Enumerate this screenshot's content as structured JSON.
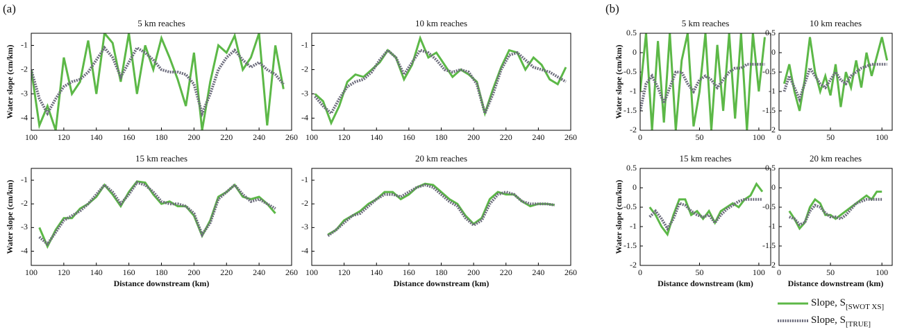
{
  "panel_labels": [
    "(a)",
    "(b)"
  ],
  "legend": [
    {
      "text": "Slope, S",
      "subscript": "[SWOT XS]",
      "color": "#5cb847",
      "style": "solid"
    },
    {
      "text": "Slope, S",
      "subscript": "[TRUE]",
      "color": "#6b6b7b",
      "style": "dotted"
    }
  ],
  "chart_data": [
    {
      "type": "line",
      "title": "5 km reaches",
      "ylabel": "Water slope (cm/km)",
      "xlim": [
        100,
        260
      ],
      "xticks": [
        100,
        120,
        140,
        160,
        180,
        200,
        220,
        240,
        260
      ],
      "ylim": [
        -4.5,
        -0.5
      ],
      "yticks": [
        -4,
        -3,
        -2,
        -1
      ],
      "x": [
        100,
        105,
        110,
        115,
        120,
        125,
        130,
        135,
        140,
        145,
        150,
        155,
        160,
        165,
        170,
        175,
        180,
        185,
        190,
        195,
        200,
        205,
        210,
        215,
        220,
        225,
        230,
        235,
        240,
        245,
        250,
        255
      ],
      "series": [
        {
          "color": "#5cb847",
          "style": "solid",
          "values": [
            -2.0,
            -4.3,
            -3.5,
            -4.5,
            -1.5,
            -3.0,
            -2.5,
            -0.8,
            -3.0,
            -0.5,
            -0.9,
            -2.5,
            -0.5,
            -3.0,
            -1.0,
            -2.0,
            -0.7,
            -1.5,
            -2.4,
            -3.5,
            -1.3,
            -4.5,
            -2.5,
            -1.0,
            -1.3,
            -0.6,
            -2.0,
            -1.5,
            -0.5,
            -4.3,
            -1.0,
            -2.8
          ]
        },
        {
          "color": "#6b6b7b",
          "style": "dotted",
          "values": [
            -2.0,
            -3.2,
            -3.8,
            -3.2,
            -2.7,
            -2.5,
            -2.4,
            -2.1,
            -1.6,
            -1.1,
            -1.5,
            -2.3,
            -1.7,
            -1.1,
            -1.3,
            -1.6,
            -2.0,
            -2.1,
            -2.1,
            -2.2,
            -2.6,
            -3.8,
            -3.0,
            -2.0,
            -1.5,
            -1.2,
            -1.6,
            -1.9,
            -1.7,
            -2.0,
            -2.2,
            -2.6
          ]
        }
      ]
    },
    {
      "type": "line",
      "title": "10 km reaches",
      "xlim": [
        100,
        260
      ],
      "xticks": [
        100,
        120,
        140,
        160,
        180,
        200,
        220,
        240,
        260
      ],
      "ylim": [
        -4.5,
        -0.5
      ],
      "yticks": [
        -4,
        -3,
        -2,
        -1
      ],
      "x": [
        102,
        107,
        112,
        117,
        122,
        127,
        132,
        137,
        142,
        147,
        152,
        157,
        162,
        167,
        172,
        177,
        182,
        187,
        192,
        197,
        202,
        207,
        212,
        217,
        222,
        227,
        232,
        237,
        242,
        247,
        252,
        257
      ],
      "series": [
        {
          "color": "#5cb847",
          "style": "solid",
          "values": [
            -3.0,
            -3.3,
            -4.2,
            -3.5,
            -2.5,
            -2.2,
            -2.3,
            -2.0,
            -1.7,
            -1.2,
            -1.5,
            -2.4,
            -1.8,
            -0.7,
            -1.5,
            -1.3,
            -1.8,
            -2.3,
            -2.0,
            -2.2,
            -2.5,
            -3.8,
            -2.8,
            -1.9,
            -1.2,
            -1.3,
            -2.0,
            -1.5,
            -1.8,
            -2.4,
            -2.6,
            -1.9
          ]
        },
        {
          "color": "#6b6b7b",
          "style": "dotted",
          "values": [
            -3.1,
            -3.5,
            -3.8,
            -3.2,
            -2.7,
            -2.5,
            -2.4,
            -2.1,
            -1.6,
            -1.2,
            -1.5,
            -2.2,
            -1.7,
            -1.2,
            -1.3,
            -1.6,
            -2.0,
            -2.1,
            -2.0,
            -2.1,
            -2.6,
            -3.8,
            -3.0,
            -2.0,
            -1.4,
            -1.3,
            -1.6,
            -1.9,
            -2.0,
            -2.1,
            -2.3,
            -2.5
          ]
        }
      ]
    },
    {
      "type": "line",
      "title": "15 km reaches",
      "ylabel": "Water slope (cm/km)",
      "xlabel": "Distance downstream (km)",
      "xlim": [
        100,
        260
      ],
      "xticks": [
        100,
        120,
        140,
        160,
        180,
        200,
        220,
        240,
        260
      ],
      "ylim": [
        -4.6,
        -0.5
      ],
      "yticks": [
        -4,
        -3,
        -2,
        -1
      ],
      "x": [
        105,
        110,
        115,
        120,
        125,
        130,
        135,
        140,
        145,
        150,
        155,
        160,
        165,
        170,
        175,
        180,
        185,
        190,
        195,
        200,
        205,
        210,
        215,
        220,
        225,
        230,
        235,
        240,
        245,
        250
      ],
      "series": [
        {
          "color": "#5cb847",
          "style": "solid",
          "values": [
            -3.0,
            -3.8,
            -3.1,
            -2.6,
            -2.6,
            -2.2,
            -2.0,
            -1.7,
            -1.2,
            -1.6,
            -2.1,
            -1.5,
            -1.05,
            -1.1,
            -1.6,
            -2.0,
            -1.9,
            -2.1,
            -2.1,
            -2.5,
            -3.35,
            -2.7,
            -1.7,
            -1.5,
            -1.2,
            -1.7,
            -1.8,
            -1.7,
            -2.0,
            -2.4
          ]
        },
        {
          "color": "#6b6b7b",
          "style": "dotted",
          "values": [
            -3.4,
            -3.7,
            -3.2,
            -2.7,
            -2.5,
            -2.3,
            -2.0,
            -1.6,
            -1.2,
            -1.5,
            -2.0,
            -1.6,
            -1.1,
            -1.2,
            -1.5,
            -1.9,
            -2.0,
            -2.0,
            -2.1,
            -2.4,
            -3.3,
            -2.8,
            -1.8,
            -1.5,
            -1.2,
            -1.6,
            -1.9,
            -1.8,
            -2.0,
            -2.2
          ]
        }
      ]
    },
    {
      "type": "line",
      "title": "20 km reaches",
      "xlabel": "Distance downstream (km)",
      "xlim": [
        100,
        260
      ],
      "xticks": [
        100,
        120,
        140,
        160,
        180,
        200,
        220,
        240,
        260
      ],
      "ylim": [
        -4.6,
        -0.5
      ],
      "yticks": [
        -4,
        -3,
        -2,
        -1
      ],
      "x": [
        110,
        115,
        120,
        125,
        130,
        135,
        140,
        145,
        150,
        155,
        160,
        165,
        170,
        175,
        180,
        185,
        190,
        195,
        200,
        205,
        210,
        215,
        220,
        225,
        230,
        235,
        240,
        245,
        250
      ],
      "series": [
        {
          "color": "#5cb847",
          "style": "solid",
          "values": [
            -3.3,
            -3.1,
            -2.7,
            -2.5,
            -2.3,
            -2.0,
            -1.8,
            -1.5,
            -1.5,
            -1.8,
            -1.6,
            -1.3,
            -1.15,
            -1.2,
            -1.5,
            -1.8,
            -2.0,
            -2.5,
            -2.85,
            -2.6,
            -1.8,
            -1.5,
            -1.6,
            -1.6,
            -1.9,
            -2.1,
            -2.0,
            -2.0,
            -2.05
          ]
        },
        {
          "color": "#6b6b7b",
          "style": "dotted",
          "values": [
            -3.35,
            -3.1,
            -2.8,
            -2.5,
            -2.4,
            -2.1,
            -1.8,
            -1.6,
            -1.6,
            -1.7,
            -1.5,
            -1.3,
            -1.2,
            -1.3,
            -1.6,
            -1.9,
            -2.1,
            -2.6,
            -2.9,
            -2.7,
            -2.0,
            -1.6,
            -1.5,
            -1.6,
            -1.9,
            -2.0,
            -2.0,
            -2.0,
            -2.05
          ]
        }
      ]
    },
    {
      "type": "line",
      "title": "5 km reaches",
      "ylabel": "Water slope (cm/km)",
      "xlim": [
        0,
        110
      ],
      "xticks": [
        0,
        50,
        100
      ],
      "ylim": [
        -2,
        0.5
      ],
      "yticks": [
        -2,
        -1.5,
        -1,
        -0.5,
        0,
        0.5
      ],
      "x": [
        0,
        5,
        10,
        15,
        20,
        25,
        30,
        35,
        40,
        45,
        50,
        55,
        60,
        65,
        70,
        75,
        80,
        85,
        90,
        95,
        100,
        105
      ],
      "series": [
        {
          "color": "#5cb847",
          "style": "solid",
          "values": [
            -1.0,
            0.5,
            -2.0,
            0.3,
            -1.8,
            0.5,
            -2.0,
            -0.2,
            0.5,
            -1.9,
            -1.0,
            0.5,
            -2.0,
            0.2,
            -1.5,
            0.5,
            -1.7,
            0.5,
            -2.0,
            0.5,
            -1.0,
            0.4
          ]
        },
        {
          "color": "#6b6b7b",
          "style": "dotted",
          "values": [
            -1.5,
            -0.8,
            -0.6,
            -0.9,
            -1.3,
            -0.9,
            -0.5,
            -0.5,
            -0.8,
            -1.0,
            -0.7,
            -0.6,
            -0.7,
            -0.9,
            -0.7,
            -0.5,
            -0.4,
            -0.4,
            -0.3,
            -0.3,
            -0.3,
            -0.3
          ]
        }
      ]
    },
    {
      "type": "line",
      "title": "10 km reaches",
      "xlim": [
        0,
        110
      ],
      "xticks": [
        0,
        50,
        100
      ],
      "ylim": [
        -2,
        0.5
      ],
      "yticks": [
        -2,
        -1.5,
        -1,
        -0.5,
        0,
        0.5
      ],
      "x": [
        5,
        10,
        15,
        20,
        25,
        30,
        35,
        40,
        45,
        50,
        55,
        60,
        65,
        70,
        75,
        80,
        85,
        90,
        95,
        100,
        105
      ],
      "series": [
        {
          "color": "#5cb847",
          "style": "solid",
          "values": [
            -0.8,
            -0.3,
            -1.0,
            -1.5,
            -0.7,
            0.4,
            -0.5,
            -1.0,
            -0.6,
            -1.1,
            -0.3,
            -1.4,
            -0.5,
            -0.9,
            -0.2,
            -0.9,
            0.0,
            -0.6,
            -0.1,
            0.4,
            -0.2
          ]
        },
        {
          "color": "#6b6b7b",
          "style": "dotted",
          "values": [
            -1.0,
            -0.6,
            -0.9,
            -1.2,
            -0.8,
            -0.4,
            -0.6,
            -0.8,
            -0.9,
            -0.7,
            -0.5,
            -0.7,
            -0.8,
            -0.6,
            -0.5,
            -0.4,
            -0.35,
            -0.3,
            -0.3,
            -0.3,
            -0.3
          ]
        }
      ]
    },
    {
      "type": "line",
      "title": "15 km reaches",
      "ylabel": "Water slope (cm/km)",
      "xlabel": "Distance downstream (km)",
      "xlim": [
        0,
        110
      ],
      "xticks": [
        0,
        50,
        100
      ],
      "ylim": [
        -2,
        0.5
      ],
      "yticks": [
        -2,
        -1.5,
        -1,
        -0.5,
        0,
        0.5
      ],
      "x": [
        8,
        13,
        18,
        23,
        28,
        33,
        38,
        43,
        48,
        53,
        58,
        63,
        68,
        73,
        78,
        83,
        88,
        93,
        98,
        103
      ],
      "series": [
        {
          "color": "#5cb847",
          "style": "solid",
          "values": [
            -0.5,
            -0.7,
            -1.0,
            -1.2,
            -0.7,
            -0.3,
            -0.3,
            -0.7,
            -0.6,
            -0.8,
            -0.6,
            -0.9,
            -0.6,
            -0.5,
            -0.4,
            -0.5,
            -0.3,
            -0.2,
            0.1,
            -0.1
          ]
        },
        {
          "color": "#6b6b7b",
          "style": "dotted",
          "values": [
            -0.75,
            -0.6,
            -0.8,
            -1.05,
            -0.8,
            -0.4,
            -0.45,
            -0.6,
            -0.7,
            -0.75,
            -0.7,
            -0.9,
            -0.7,
            -0.55,
            -0.45,
            -0.35,
            -0.3,
            -0.3,
            -0.3,
            -0.3
          ]
        }
      ]
    },
    {
      "type": "line",
      "title": "20 km reaches",
      "xlabel": "Distance downstream (km)",
      "xlim": [
        0,
        110
      ],
      "xticks": [
        0,
        50,
        100
      ],
      "ylim": [
        -2,
        0.5
      ],
      "yticks": [
        -2,
        -1.5,
        -1,
        -0.5,
        0,
        0.5
      ],
      "x": [
        10,
        15,
        20,
        25,
        30,
        35,
        40,
        45,
        50,
        55,
        60,
        65,
        70,
        75,
        80,
        85,
        90,
        95,
        100
      ],
      "series": [
        {
          "color": "#5cb847",
          "style": "solid",
          "values": [
            -0.6,
            -0.8,
            -1.05,
            -0.9,
            -0.5,
            -0.3,
            -0.4,
            -0.7,
            -0.7,
            -0.8,
            -0.7,
            -0.6,
            -0.5,
            -0.4,
            -0.3,
            -0.2,
            -0.3,
            -0.1,
            -0.1
          ]
        },
        {
          "color": "#6b6b7b",
          "style": "dotted",
          "values": [
            -0.75,
            -0.8,
            -0.95,
            -0.9,
            -0.6,
            -0.45,
            -0.5,
            -0.65,
            -0.75,
            -0.75,
            -0.8,
            -0.7,
            -0.55,
            -0.4,
            -0.35,
            -0.3,
            -0.3,
            -0.3,
            -0.3
          ]
        }
      ]
    }
  ]
}
